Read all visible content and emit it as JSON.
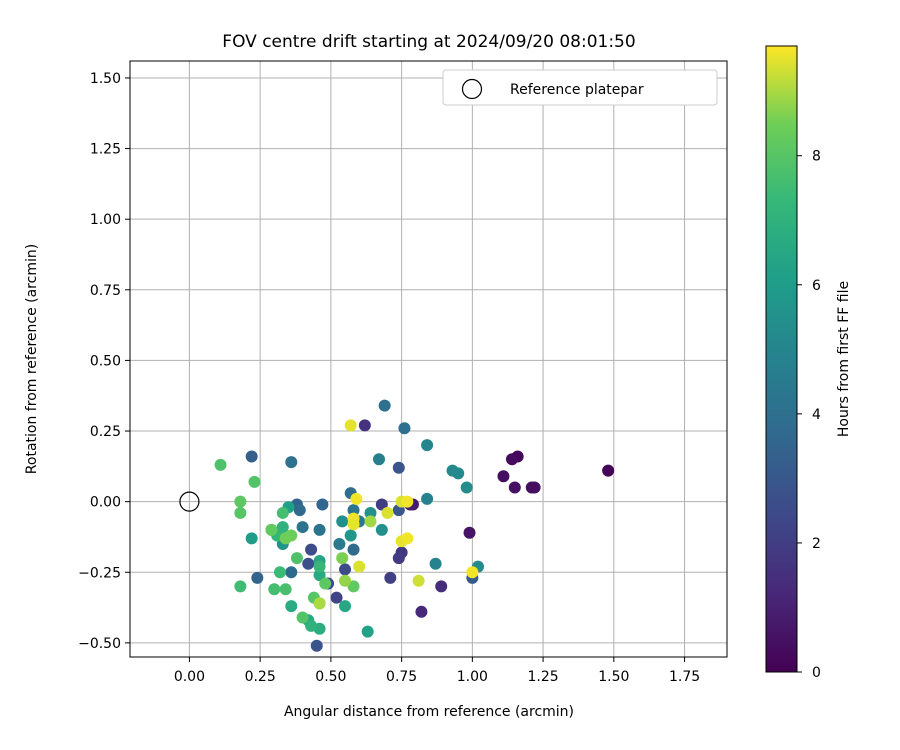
{
  "chart_data": {
    "type": "scatter",
    "title": "FOV centre drift starting at 2024/09/20 08:01:50",
    "xlabel": "Angular distance from reference (arcmin)",
    "ylabel": "Rotation from reference (arcmin)",
    "xlim": [
      -0.21,
      1.9
    ],
    "ylim": [
      -0.55,
      1.56
    ],
    "xticks": [
      0.0,
      0.25,
      0.5,
      0.75,
      1.0,
      1.25,
      1.5,
      1.75
    ],
    "xtick_labels": [
      "0.00",
      "0.25",
      "0.50",
      "0.75",
      "1.00",
      "1.25",
      "1.50",
      "1.75"
    ],
    "yticks": [
      -0.5,
      -0.25,
      0.0,
      0.25,
      0.5,
      0.75,
      1.0,
      1.25,
      1.5
    ],
    "ytick_labels": [
      "−0.50",
      "−0.25",
      "0.00",
      "0.25",
      "0.50",
      "0.75",
      "1.00",
      "1.25",
      "1.50"
    ],
    "grid": true,
    "legend": {
      "position": "top-right",
      "entries": [
        {
          "label": "Reference platepar",
          "marker": "open-circle"
        }
      ]
    },
    "reference_point": {
      "x": 0.0,
      "y": 0.0
    },
    "colorbar": {
      "label": "Hours from first FF file",
      "colormap": "viridis",
      "range": [
        0,
        9.7
      ],
      "ticks": [
        0,
        2,
        4,
        6,
        8
      ],
      "tick_labels": [
        "0",
        "2",
        "4",
        "6",
        "8"
      ]
    },
    "points": [
      {
        "x": 1.48,
        "y": 0.11,
        "c": 0.1
      },
      {
        "x": 1.16,
        "y": 0.16,
        "c": 0.2
      },
      {
        "x": 1.14,
        "y": 0.15,
        "c": 0.3
      },
      {
        "x": 1.11,
        "y": 0.09,
        "c": 0.4
      },
      {
        "x": 1.15,
        "y": 0.05,
        "c": 0.5
      },
      {
        "x": 1.22,
        "y": 0.05,
        "c": 0.5
      },
      {
        "x": 1.21,
        "y": 0.05,
        "c": 0.4
      },
      {
        "x": 0.99,
        "y": -0.11,
        "c": 0.6
      },
      {
        "x": 0.79,
        "y": -0.01,
        "c": 0.8
      },
      {
        "x": 0.78,
        "y": -0.01,
        "c": 0.9
      },
      {
        "x": 0.82,
        "y": -0.39,
        "c": 1.2
      },
      {
        "x": 0.89,
        "y": -0.3,
        "c": 1.4
      },
      {
        "x": 0.62,
        "y": 0.27,
        "c": 1.6
      },
      {
        "x": 0.75,
        "y": -0.18,
        "c": 1.8
      },
      {
        "x": 0.74,
        "y": -0.2,
        "c": 1.9
      },
      {
        "x": 0.68,
        "y": -0.01,
        "c": 2.0
      },
      {
        "x": 0.71,
        "y": -0.27,
        "c": 2.1
      },
      {
        "x": 0.52,
        "y": -0.34,
        "c": 2.2
      },
      {
        "x": 0.49,
        "y": -0.29,
        "c": 2.4
      },
      {
        "x": 0.55,
        "y": -0.24,
        "c": 2.5
      },
      {
        "x": 0.43,
        "y": -0.17,
        "c": 2.6
      },
      {
        "x": 0.42,
        "y": -0.22,
        "c": 2.7
      },
      {
        "x": 0.45,
        "y": -0.51,
        "c": 2.8
      },
      {
        "x": 0.74,
        "y": 0.12,
        "c": 2.9
      },
      {
        "x": 0.74,
        "y": -0.03,
        "c": 3.0
      },
      {
        "x": 1.0,
        "y": -0.27,
        "c": 3.1
      },
      {
        "x": 0.22,
        "y": 0.16,
        "c": 3.3
      },
      {
        "x": 0.24,
        "y": -0.27,
        "c": 3.5
      },
      {
        "x": 0.38,
        "y": -0.01,
        "c": 3.5
      },
      {
        "x": 0.47,
        "y": -0.01,
        "c": 3.6
      },
      {
        "x": 0.36,
        "y": -0.25,
        "c": 3.7
      },
      {
        "x": 0.39,
        "y": -0.03,
        "c": 3.8
      },
      {
        "x": 0.58,
        "y": -0.17,
        "c": 3.8
      },
      {
        "x": 0.57,
        "y": 0.03,
        "c": 3.9
      },
      {
        "x": 0.76,
        "y": 0.26,
        "c": 4.0
      },
      {
        "x": 0.69,
        "y": 0.34,
        "c": 4.0
      },
      {
        "x": 0.36,
        "y": 0.14,
        "c": 4.1
      },
      {
        "x": 0.4,
        "y": -0.09,
        "c": 4.2
      },
      {
        "x": 0.46,
        "y": -0.1,
        "c": 4.2
      },
      {
        "x": 0.58,
        "y": -0.03,
        "c": 4.3
      },
      {
        "x": 0.6,
        "y": -0.07,
        "c": 4.4
      },
      {
        "x": 0.53,
        "y": -0.15,
        "c": 4.5
      },
      {
        "x": 0.67,
        "y": 0.15,
        "c": 4.7
      },
      {
        "x": 0.84,
        "y": 0.01,
        "c": 4.8
      },
      {
        "x": 0.87,
        "y": -0.22,
        "c": 4.9
      },
      {
        "x": 0.84,
        "y": 0.2,
        "c": 5.0
      },
      {
        "x": 0.93,
        "y": 0.11,
        "c": 5.1
      },
      {
        "x": 0.95,
        "y": 0.1,
        "c": 5.2
      },
      {
        "x": 0.98,
        "y": 0.05,
        "c": 5.3
      },
      {
        "x": 1.02,
        "y": -0.23,
        "c": 5.2
      },
      {
        "x": 0.54,
        "y": -0.07,
        "c": 5.4
      },
      {
        "x": 0.64,
        "y": -0.04,
        "c": 5.5
      },
      {
        "x": 0.68,
        "y": -0.1,
        "c": 5.5
      },
      {
        "x": 0.33,
        "y": -0.15,
        "c": 5.6
      },
      {
        "x": 0.57,
        "y": -0.12,
        "c": 5.7
      },
      {
        "x": 0.22,
        "y": -0.13,
        "c": 6.0
      },
      {
        "x": 0.35,
        "y": -0.02,
        "c": 6.1
      },
      {
        "x": 0.63,
        "y": -0.46,
        "c": 6.3
      },
      {
        "x": 0.46,
        "y": -0.21,
        "c": 6.4
      },
      {
        "x": 0.55,
        "y": -0.37,
        "c": 6.5
      },
      {
        "x": 0.46,
        "y": -0.26,
        "c": 6.6
      },
      {
        "x": 0.42,
        "y": -0.42,
        "c": 6.6
      },
      {
        "x": 0.36,
        "y": -0.37,
        "c": 6.7
      },
      {
        "x": 0.46,
        "y": -0.45,
        "c": 6.8
      },
      {
        "x": 0.43,
        "y": -0.44,
        "c": 7.0
      },
      {
        "x": 0.33,
        "y": -0.09,
        "c": 7.0
      },
      {
        "x": 0.31,
        "y": -0.12,
        "c": 7.2
      },
      {
        "x": 0.46,
        "y": -0.23,
        "c": 7.3
      },
      {
        "x": 0.32,
        "y": -0.25,
        "c": 7.4
      },
      {
        "x": 0.18,
        "y": -0.3,
        "c": 7.5
      },
      {
        "x": 0.3,
        "y": -0.31,
        "c": 7.6
      },
      {
        "x": 0.34,
        "y": -0.31,
        "c": 7.7
      },
      {
        "x": 0.38,
        "y": -0.2,
        "c": 7.8
      },
      {
        "x": 0.4,
        "y": -0.41,
        "c": 7.9
      },
      {
        "x": 0.44,
        "y": -0.34,
        "c": 8.0
      },
      {
        "x": 0.46,
        "y": -0.36,
        "c": 8.1
      },
      {
        "x": 0.48,
        "y": -0.29,
        "c": 8.1
      },
      {
        "x": 0.58,
        "y": -0.3,
        "c": 8.2
      },
      {
        "x": 0.11,
        "y": 0.13,
        "c": 7.8
      },
      {
        "x": 0.23,
        "y": 0.07,
        "c": 7.9
      },
      {
        "x": 0.18,
        "y": 0.0,
        "c": 8.1
      },
      {
        "x": 0.18,
        "y": -0.04,
        "c": 8.0
      },
      {
        "x": 0.29,
        "y": -0.1,
        "c": 8.3
      },
      {
        "x": 0.33,
        "y": -0.04,
        "c": 7.6
      },
      {
        "x": 0.36,
        "y": -0.12,
        "c": 8.4
      },
      {
        "x": 0.29,
        "y": -0.1,
        "c": 8.2
      },
      {
        "x": 0.34,
        "y": -0.13,
        "c": 8.5
      },
      {
        "x": 0.54,
        "y": -0.2,
        "c": 8.6
      },
      {
        "x": 0.55,
        "y": -0.28,
        "c": 8.8
      },
      {
        "x": 0.46,
        "y": -0.36,
        "c": 9.0
      },
      {
        "x": 0.64,
        "y": -0.07,
        "c": 8.9
      },
      {
        "x": 0.57,
        "y": 0.27,
        "c": 9.5
      },
      {
        "x": 0.59,
        "y": 0.01,
        "c": 9.6
      },
      {
        "x": 0.58,
        "y": -0.06,
        "c": 9.6
      },
      {
        "x": 0.58,
        "y": -0.08,
        "c": 9.5
      },
      {
        "x": 0.6,
        "y": -0.23,
        "c": 9.4
      },
      {
        "x": 0.75,
        "y": 0.0,
        "c": 9.4
      },
      {
        "x": 0.77,
        "y": 0.0,
        "c": 9.6
      },
      {
        "x": 0.75,
        "y": -0.14,
        "c": 9.5
      },
      {
        "x": 0.77,
        "y": -0.13,
        "c": 9.6
      },
      {
        "x": 0.81,
        "y": -0.28,
        "c": 9.3
      },
      {
        "x": 1.0,
        "y": -0.25,
        "c": 9.6
      },
      {
        "x": 0.7,
        "y": -0.04,
        "c": 9.4
      }
    ]
  }
}
